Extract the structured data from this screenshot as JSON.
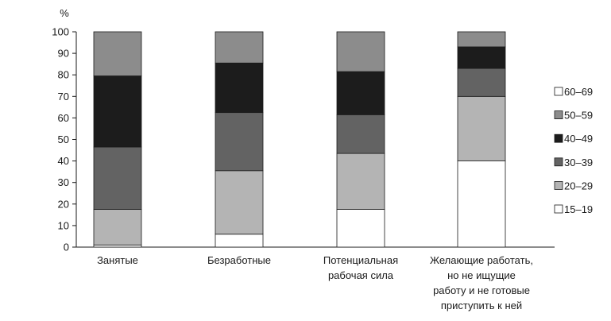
{
  "chart_data": {
    "type": "bar",
    "stacked": true,
    "y_unit_label": "%",
    "ylim": [
      0,
      100
    ],
    "yticks": [
      0,
      10,
      20,
      30,
      40,
      50,
      60,
      70,
      80,
      90,
      100
    ],
    "categories": [
      [
        "Занятые"
      ],
      [
        "Безработные"
      ],
      [
        "Потенциальная",
        "рабочая сила"
      ],
      [
        "Желающие работать,",
        "но не ищущие",
        "работу и не готовые",
        "приступить к ней"
      ]
    ],
    "series": [
      {
        "name": "15–19",
        "color": "#ffffff",
        "values": [
          1,
          6,
          17.5,
          40
        ]
      },
      {
        "name": "20–29",
        "color": "#b4b4b4",
        "values": [
          16.5,
          29.5,
          26,
          30
        ]
      },
      {
        "name": "30–39",
        "color": "#636363",
        "values": [
          29,
          27,
          18,
          13
        ]
      },
      {
        "name": "40–49",
        "color": "#1c1c1c",
        "values": [
          33,
          23,
          20,
          10
        ]
      },
      {
        "name": "50–59",
        "color": "#8c8c8c",
        "values": [
          20.5,
          14.5,
          18.5,
          7
        ]
      },
      {
        "name": "60–69",
        "color": "#ffffff",
        "values": [
          0,
          0,
          0,
          0
        ]
      }
    ],
    "legend_position": "right",
    "grid": false
  }
}
